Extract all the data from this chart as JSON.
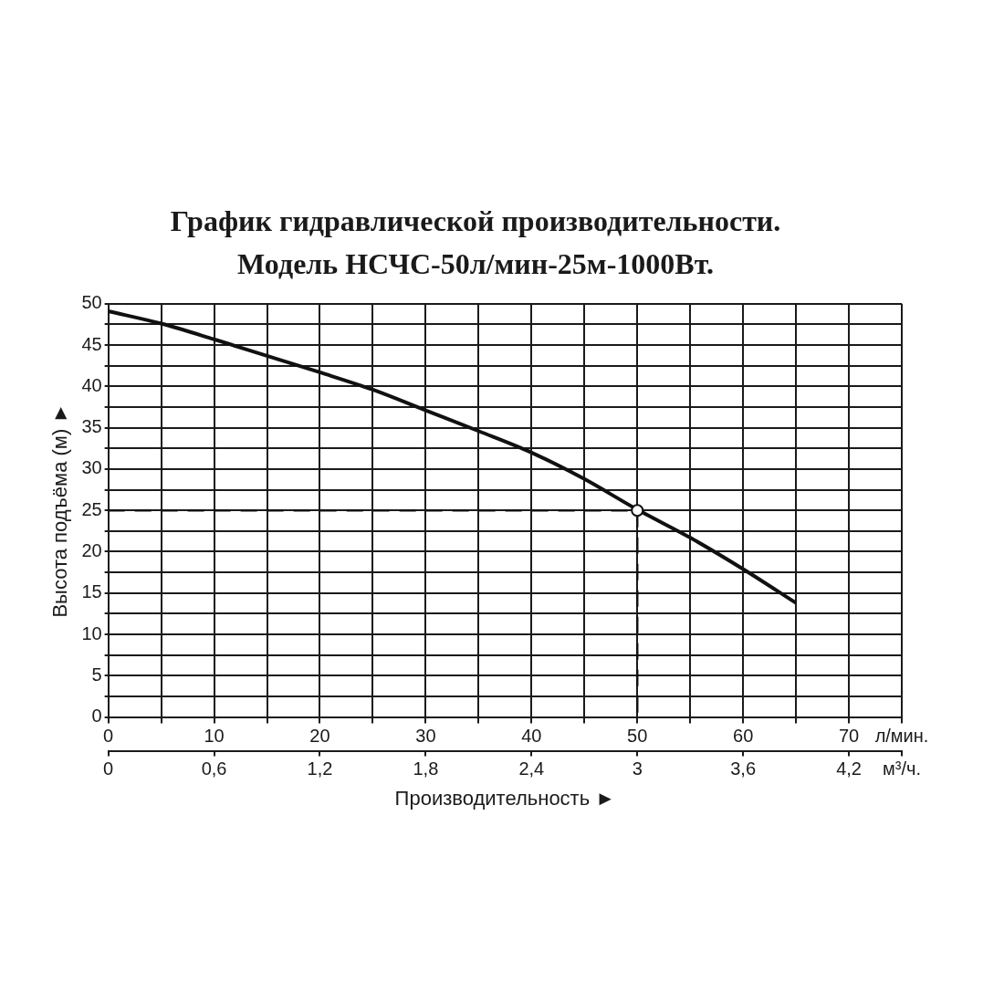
{
  "chart_data": {
    "type": "line",
    "title": "График гидравлической производительности.\nМодель НСЧС-50л/мин-25м-1000Вт.",
    "xlabel": "Производительность ►",
    "ylabel": "Высота подъёма (м) ►",
    "series": [
      {
        "color": "#111111",
        "marker": "none",
        "x": [
          0,
          5,
          10,
          15,
          20,
          25,
          30,
          35,
          40,
          45,
          50,
          55,
          60,
          65
        ],
        "values": [
          49.1,
          47.6,
          45.7,
          43.7,
          41.7,
          39.6,
          37.1,
          34.6,
          32.0,
          28.8,
          25.1,
          21.7,
          17.9,
          13.8
        ]
      },
      {
        "type": "line",
        "color": "#111111",
        "marker": "none",
        "line_style": "dashed",
        "x": [
          0,
          50,
          50
        ],
        "values": [
          25,
          25,
          0
        ]
      },
      {
        "type": "scatter",
        "color": "#111111",
        "marker": "circle",
        "x": [
          50
        ],
        "values": [
          25
        ]
      }
    ],
    "xlim": [
      0,
      75
    ],
    "xticks": [
      0,
      {
        "value": 5,
        "label": null
      },
      10,
      {
        "value": 15,
        "label": null
      },
      20,
      {
        "value": 25,
        "label": null
      },
      30,
      {
        "value": 35,
        "label": null
      },
      40,
      {
        "value": 45,
        "label": null
      },
      50,
      {
        "value": 55,
        "label": null
      },
      60,
      {
        "value": 65,
        "label": null
      },
      70,
      {
        "value": 75,
        "label": "л/мин."
      }
    ],
    "x2lim": [
      0,
      4.5
    ],
    "x2ticks": [
      0,
      {
        "value": 0.6,
        "label": "0,6"
      },
      {
        "value": 1.2,
        "label": "1,2"
      },
      {
        "value": 1.8,
        "label": "1,8"
      },
      {
        "value": 2.4,
        "label": "2,4"
      },
      3,
      {
        "value": 3.6,
        "label": "3,6"
      },
      {
        "value": 4.2,
        "label": "4,2"
      },
      {
        "value": 4.5,
        "label": "м³/ч."
      }
    ],
    "ylim": [
      0,
      50
    ],
    "yticks": [
      0,
      {
        "value": 2.5,
        "label": null
      },
      5,
      {
        "value": 7.5,
        "label": null
      },
      10,
      {
        "value": 12.5,
        "label": null
      },
      15,
      {
        "value": 17.5,
        "label": null
      },
      20,
      {
        "value": 22.5,
        "label": null
      },
      25,
      {
        "value": 27.5,
        "label": null
      },
      30,
      {
        "value": 32.5,
        "label": null
      },
      35,
      {
        "value": 37.5,
        "label": null
      },
      40,
      {
        "value": 42.5,
        "label": null
      },
      45,
      {
        "value": 47.5,
        "label": null
      },
      50
    ],
    "grid": true
  }
}
